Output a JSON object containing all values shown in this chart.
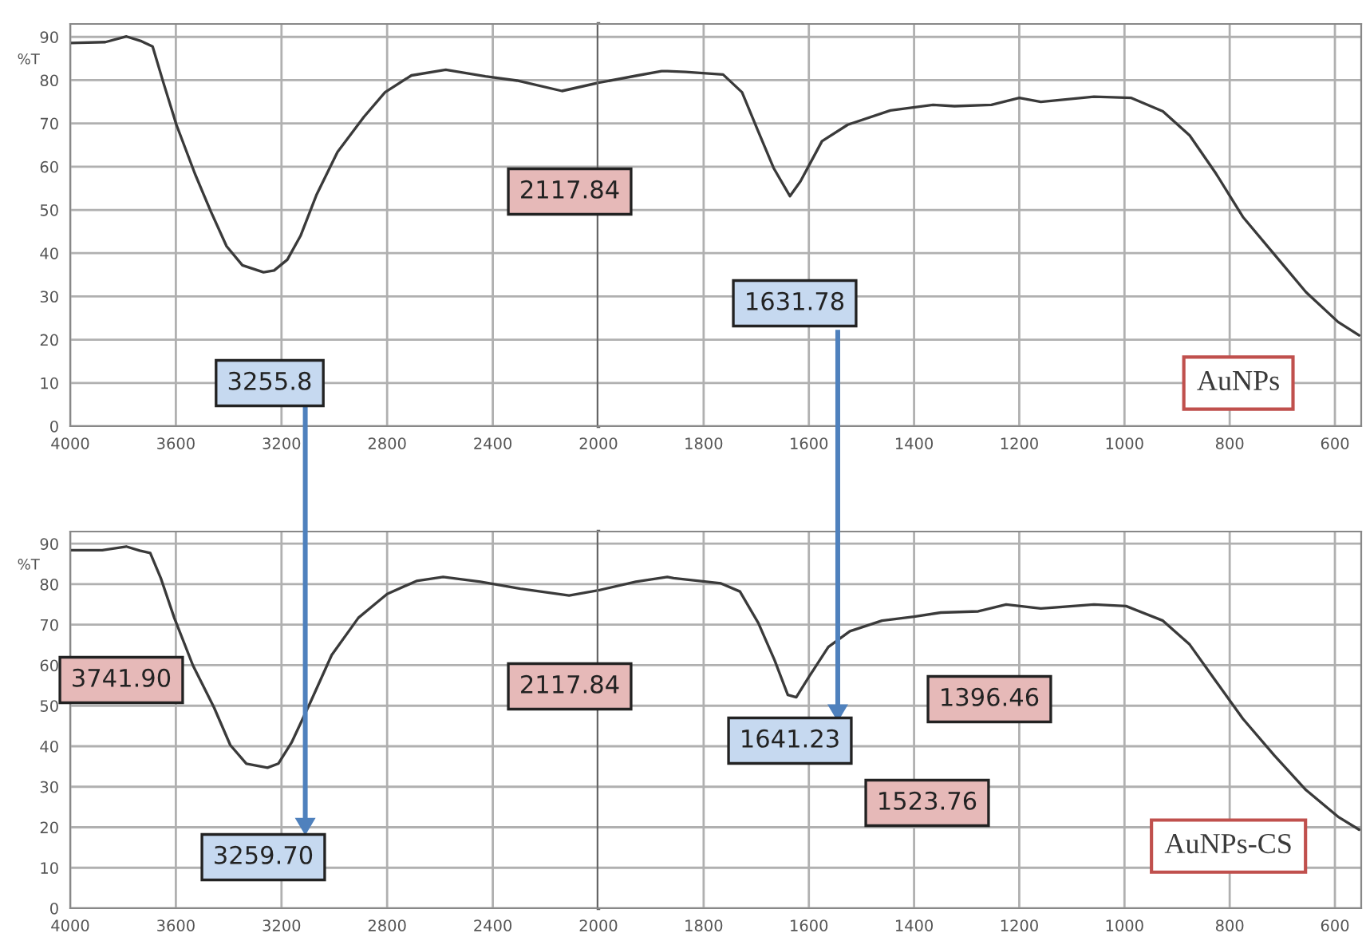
{
  "chart_data": [
    {
      "type": "line",
      "ylabel": "%T",
      "xlim": [
        4000,
        2000
      ],
      "xticks": [
        4000,
        3600,
        3200,
        2800,
        2400,
        2000
      ],
      "ylim": [
        0,
        93
      ],
      "yticks": [
        0,
        10,
        20,
        30,
        40,
        50,
        60,
        70,
        80,
        90
      ],
      "grid": true,
      "series": [
        {
          "color": "#3a3a3a",
          "x": [
            4000,
            3867,
            3787,
            3730,
            3688,
            3648,
            3598,
            3528,
            3468,
            3408,
            3348,
            3268,
            3228,
            3178,
            3128,
            3068,
            2988,
            2888,
            2808,
            2708,
            2578,
            2428,
            2308,
            2138,
            2000
          ],
          "values": [
            88.6,
            88.8,
            90.1,
            89,
            87.8,
            79.6,
            69.7,
            58.4,
            49.7,
            41.6,
            37.2,
            35.6,
            36,
            38.5,
            44,
            53.4,
            63.4,
            71.5,
            77.2,
            81.1,
            82.4,
            80.9,
            79.9,
            77.5,
            79.4
          ]
        }
      ],
      "annotations": [
        "3255.8",
        "2117.84"
      ]
    },
    {
      "type": "line",
      "xlim": [
        2000,
        550
      ],
      "xticks": [
        1800,
        1600,
        1400,
        1200,
        1000,
        800,
        600
      ],
      "ylim": [
        0,
        93
      ],
      "yticks": [
        0,
        10,
        20,
        30,
        40,
        50,
        60,
        70,
        80,
        90
      ],
      "grid": true,
      "tick_labels": "x",
      "series": [
        {
          "name": "AuNPs",
          "color": "#3a3a3a",
          "x": [
            2000,
            1925,
            1880,
            1869,
            1834,
            1763,
            1727,
            1697,
            1667,
            1636,
            1616,
            1575,
            1526,
            1445,
            1364,
            1323,
            1253,
            1200,
            1159,
            1058,
            987,
            927,
            876,
            826,
            775,
            715,
            655,
            594,
            554
          ],
          "values": [
            79.4,
            81.1,
            82.1,
            82.1,
            81.9,
            81.3,
            77.2,
            68.4,
            59.7,
            53.2,
            56.6,
            65.9,
            69.7,
            73,
            74.3,
            74,
            74.3,
            75.9,
            75,
            76.2,
            75.9,
            72.8,
            67.2,
            58.4,
            48.4,
            39.7,
            31,
            24.1,
            21
          ]
        }
      ],
      "annotations": [
        "1631.78"
      ]
    },
    {
      "type": "line",
      "ylabel": "%T",
      "xlim": [
        4000,
        2000
      ],
      "xticks": [
        4000,
        3600,
        3200,
        2800,
        2400,
        2000
      ],
      "ylim": [
        0,
        93
      ],
      "yticks": [
        0,
        10,
        20,
        30,
        40,
        50,
        60,
        70,
        80,
        90
      ],
      "grid": true,
      "series": [
        {
          "color": "#3a3a3a",
          "x": [
            4000,
            3879,
            3788,
            3737,
            3697,
            3657,
            3606,
            3535,
            3455,
            3394,
            3333,
            3253,
            3212,
            3162,
            3091,
            3010,
            2909,
            2800,
            2689,
            2588,
            2447,
            2295,
            2111,
            2000
          ],
          "values": [
            88.4,
            88.4,
            89.3,
            88.3,
            87.7,
            81.5,
            71.7,
            59.9,
            49.5,
            40.3,
            35.7,
            34.7,
            35.7,
            40.9,
            50.8,
            62.5,
            71.7,
            77.6,
            80.8,
            81.8,
            80.6,
            78.9,
            77.2,
            78.5
          ]
        }
      ],
      "annotations": [
        "3741.90",
        "3259.70",
        "2117.84"
      ]
    },
    {
      "type": "line",
      "xlim": [
        2000,
        550
      ],
      "xticks": [
        1800,
        1600,
        1400,
        1200,
        1000,
        800,
        600
      ],
      "ylim": [
        0,
        93
      ],
      "yticks": [
        0,
        10,
        20,
        30,
        40,
        50,
        60,
        70,
        80,
        90
      ],
      "grid": true,
      "tick_labels": "x",
      "series": [
        {
          "name": "AuNPs-CS",
          "color": "#3a3a3a",
          "x": [
            2000,
            1929,
            1869,
            1857,
            1767,
            1731,
            1696,
            1665,
            1640,
            1624,
            1599,
            1563,
            1522,
            1461,
            1400,
            1349,
            1278,
            1225,
            1159,
            1058,
            997,
            927,
            876,
            826,
            775,
            715,
            655,
            594,
            554
          ],
          "values": [
            78.5,
            80.6,
            81.8,
            81.5,
            80.2,
            78.2,
            70.4,
            61.2,
            52.7,
            52.1,
            57.3,
            64.5,
            68.4,
            71,
            72,
            73,
            73.3,
            75,
            74,
            75,
            74.6,
            71,
            65.1,
            56,
            46.8,
            37.7,
            29.2,
            22.6,
            19.4
          ]
        }
      ],
      "annotations": [
        "1641.23",
        "1523.76",
        "1396.46"
      ]
    }
  ]
}
